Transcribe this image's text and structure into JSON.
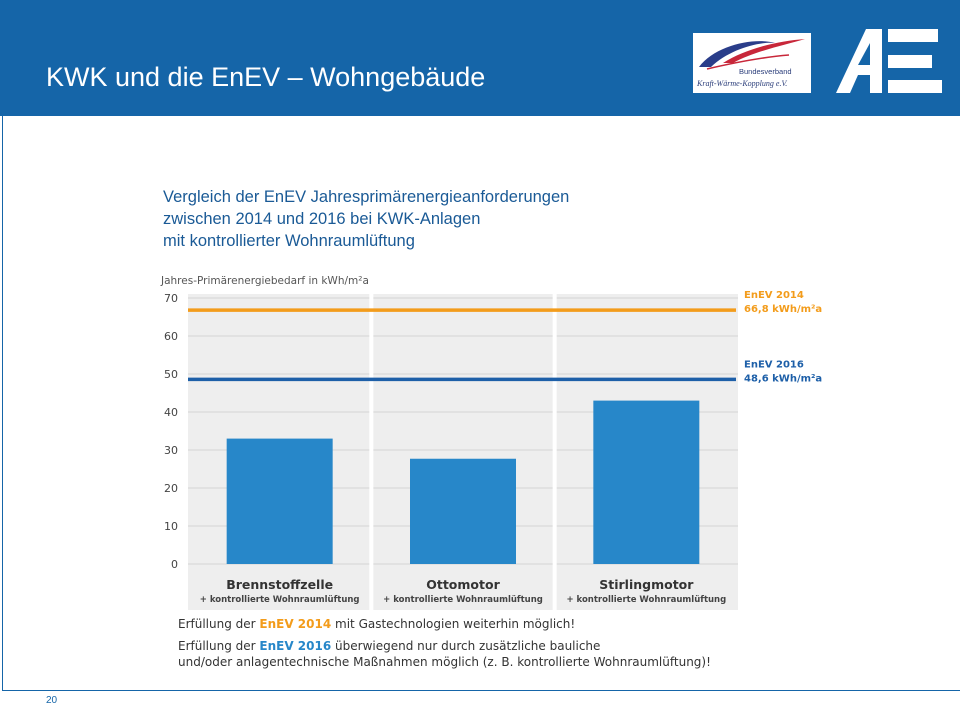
{
  "header": {
    "title": "KWK und die EnEV – Wohngebäude",
    "bkwk_logo_line1": "Bundesverband",
    "bkwk_logo_line2": "Kraft-Wärme-Kopplung e.V."
  },
  "subtitle": [
    "Vergleich der EnEV Jahresprimärenergieanforderungen",
    "zwischen 2014 und 2016 bei KWK-Anlagen",
    "mit kontrollierter Wohnraumlüftung"
  ],
  "chart_data": {
    "type": "bar",
    "ylabel": "Jahres-Primärenergiebedarf in kWh/m²a",
    "ylim": [
      0,
      70
    ],
    "yticks": [
      0,
      10,
      20,
      30,
      40,
      50,
      60,
      70
    ],
    "categories": [
      "Brennstoffzelle",
      "Ottomotor",
      "Stirlingmotor"
    ],
    "category_sublabel": "+ kontrollierte Wohnraumlüftung",
    "values": [
      33,
      27.7,
      43
    ],
    "bar_color": "#2787c9",
    "reference_lines": [
      {
        "label": "EnEV 2014",
        "value_label": "66,8 kWh/m²a",
        "value": 66.8,
        "color": "#f39c1b"
      },
      {
        "label": "EnEV 2016",
        "value_label": "48,6 kWh/m²a",
        "value": 48.6,
        "color": "#1d5fa8"
      }
    ],
    "grid": true,
    "legend": "right"
  },
  "notes": {
    "line1_before": "Erfüllung der ",
    "line1_highlight": "EnEV 2014",
    "line1_after": " mit Gastechnologien weiterhin möglich!",
    "line2_before": "Erfüllung der ",
    "line2_highlight": "EnEV 2016",
    "line2_after": " überwiegend nur durch zusätzliche bauliche",
    "line3": "und/oder anlagentechnische Maßnahmen möglich (z. B. kontrollierte Wohnraumlüftung)!"
  },
  "footer": {
    "page_number": "20"
  },
  "colors": {
    "header_bg": "#1565a8",
    "orange": "#f39c1b",
    "blue_line": "#1d5fa8",
    "bar": "#2787c9"
  }
}
